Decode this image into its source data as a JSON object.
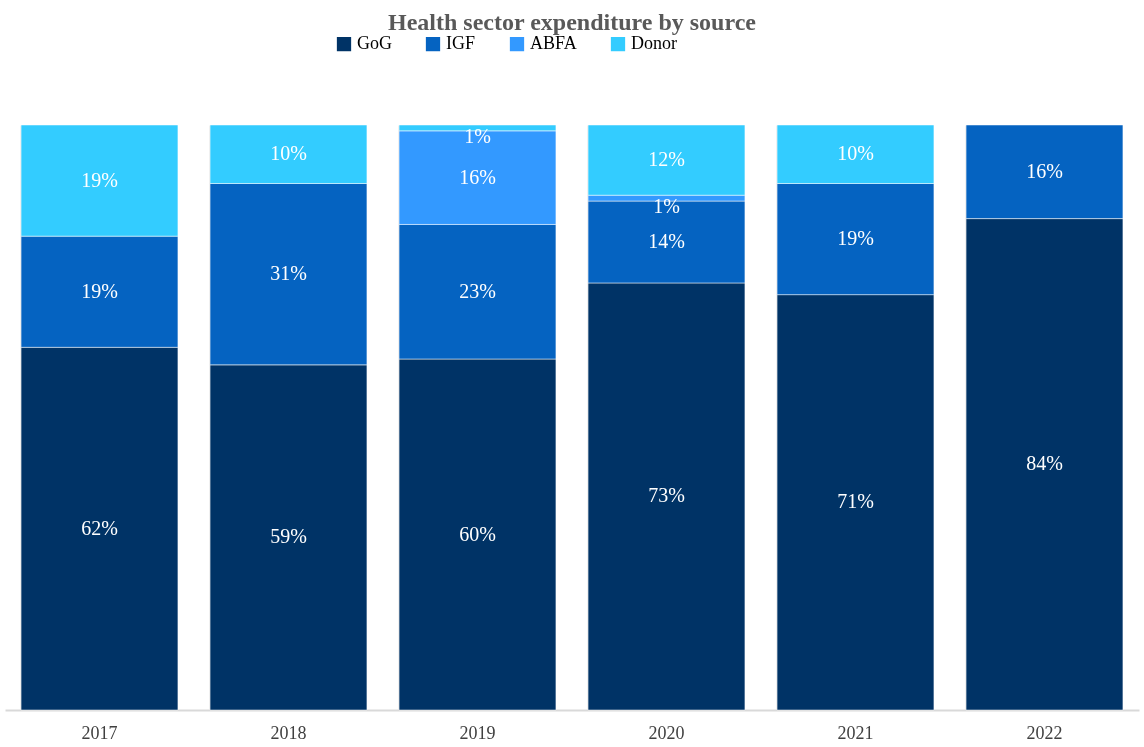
{
  "chart_data": {
    "type": "bar",
    "title": "Health sector expenditure by source",
    "stacked": true,
    "legend": "top",
    "grid": "x",
    "categories": [
      "2017",
      "2018",
      "2019",
      "2020",
      "2021",
      "2022"
    ],
    "series": [
      {
        "name": "GoG",
        "color": "#003366",
        "values": [
          62,
          59,
          60,
          73,
          71,
          84
        ],
        "value_labels": [
          "62%",
          "59%",
          "60%",
          "73%",
          "71%",
          "84%"
        ]
      },
      {
        "name": "IGF",
        "color": "#0563c1",
        "values": [
          19,
          31,
          23,
          14,
          19,
          16
        ],
        "value_labels": [
          "19%",
          "31%",
          "23%",
          "14%",
          "19%",
          "16%"
        ]
      },
      {
        "name": "ABFA",
        "color": "#3399ff",
        "values": [
          null,
          null,
          16,
          1,
          null,
          null
        ],
        "value_labels": [
          null,
          null,
          "16%",
          "1%",
          null,
          null
        ]
      },
      {
        "name": "Donor",
        "color": "#33ccff",
        "values": [
          19,
          10,
          1,
          12,
          10,
          null
        ],
        "value_labels": [
          "19%",
          "10%",
          "1%",
          "12%",
          "10%",
          null
        ]
      }
    ]
  }
}
